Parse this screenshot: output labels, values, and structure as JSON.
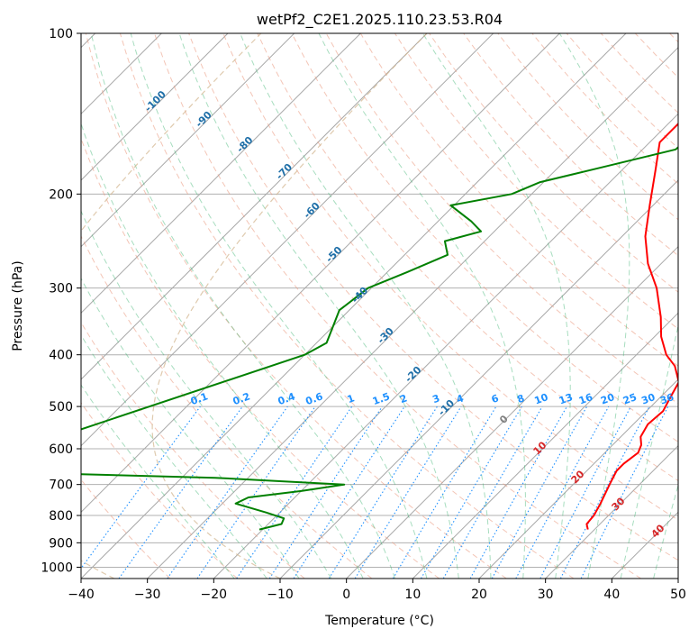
{
  "chart_data": {
    "type": "line",
    "title": "wetPf2_C2E1.2025.110.23.53.R04",
    "xlabel": "Temperature (°C)",
    "ylabel": "Pressure (hPa)",
    "xlim": [
      -40,
      50
    ],
    "ylim": [
      1050,
      100
    ],
    "y_scale": "log",
    "x_ticks": [
      -40,
      -30,
      -20,
      -10,
      0,
      10,
      20,
      30,
      40,
      50
    ],
    "y_ticks": [
      100,
      200,
      300,
      400,
      500,
      600,
      700,
      800,
      900,
      1000
    ],
    "grid": true,
    "skew": "45 degrees",
    "series": [
      {
        "color": "#ff0000",
        "values": [
          [
            850,
            29.0
          ],
          [
            830,
            28.0
          ],
          [
            800,
            27.8
          ],
          [
            760,
            27.0
          ],
          [
            700,
            25.5
          ],
          [
            660,
            24.5
          ],
          [
            640,
            24.5
          ],
          [
            610,
            25.0
          ],
          [
            590,
            24.3
          ],
          [
            570,
            23.0
          ],
          [
            540,
            22.2
          ],
          [
            510,
            22.5
          ],
          [
            480,
            21.5
          ],
          [
            450,
            20.5
          ],
          [
            420,
            17.5
          ],
          [
            400,
            14.5
          ],
          [
            370,
            11.0
          ],
          [
            340,
            8.0
          ],
          [
            300,
            3.0
          ],
          [
            270,
            -2.0
          ],
          [
            240,
            -6.5
          ],
          [
            210,
            -10.5
          ],
          [
            180,
            -15.0
          ],
          [
            160,
            -18.5
          ],
          [
            140,
            -18.5
          ],
          [
            120,
            -16.5
          ],
          [
            100,
            -17.0
          ]
        ]
      },
      {
        "color": "#008000",
        "values": [
          [
            850,
            -20.5
          ],
          [
            830,
            -18.0
          ],
          [
            810,
            -18.5
          ],
          [
            790,
            -22.0
          ],
          [
            760,
            -28.0
          ],
          [
            740,
            -27.0
          ],
          [
            720,
            -20.0
          ],
          [
            700,
            -14.5
          ],
          [
            680,
            -35.0
          ],
          [
            660,
            -75.0
          ],
          [
            400,
            -40.0
          ],
          [
            380,
            -38.5
          ],
          [
            330,
            -41.5
          ],
          [
            300,
            -40.5
          ],
          [
            280,
            -37.0
          ],
          [
            260,
            -33.5
          ],
          [
            245,
            -36.0
          ],
          [
            235,
            -32.0
          ],
          [
            225,
            -35.0
          ],
          [
            210,
            -40.5
          ],
          [
            200,
            -33.0
          ],
          [
            190,
            -30.5
          ],
          [
            180,
            -24.5
          ],
          [
            165,
            -15.0
          ],
          [
            150,
            -14.5
          ],
          [
            130,
            -18.0
          ],
          [
            115,
            -18.0
          ],
          [
            100,
            -19.0
          ]
        ]
      }
    ],
    "reference_lines": {
      "isotherm_color": "#000000",
      "dry_adiabat_color": "#e9967a",
      "moist_adiabat_color": "#3cb371",
      "mixing_ratio_color": "#1e90ff",
      "dashed_purple_color": "#d2b48c"
    },
    "annotations": {
      "isotherm_labels": [
        "-100",
        "-90",
        "-80",
        "-70",
        "-60",
        "-50",
        "-40",
        "-30",
        "-20",
        "-10"
      ],
      "isotherm_label_values": [
        -100,
        -90,
        -80,
        -70,
        -60,
        -50,
        -40,
        -30,
        -20,
        -10
      ],
      "zero_label": "0",
      "warm_labels": [
        "10",
        "20",
        "30",
        "40"
      ],
      "warm_label_values": [
        10,
        20,
        30,
        40
      ],
      "mixing_ratio_labels": [
        "0.1",
        "0.2",
        "0.4",
        "0.6",
        "1",
        "1.5",
        "2",
        "3",
        "4",
        "6",
        "8",
        "10",
        "13",
        "16",
        "20",
        "25",
        "30",
        "36"
      ],
      "mixing_ratio_values": [
        0.1,
        0.2,
        0.4,
        0.6,
        1,
        1.5,
        2,
        3,
        4,
        6,
        8,
        10,
        13,
        16,
        20,
        25,
        30,
        36
      ],
      "isotherm_label_color": "#1f6fa8",
      "warm_label_color": "#d62728",
      "zero_label_color": "#808080",
      "mixing_label_color": "#1e90ff"
    }
  }
}
